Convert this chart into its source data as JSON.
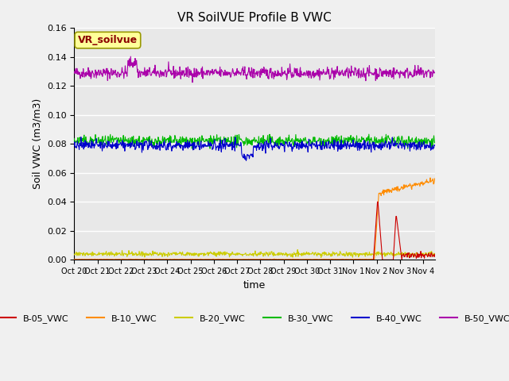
{
  "title": "VR SoilVUE Profile B VWC",
  "xlabel": "time",
  "ylabel": "Soil VWC (m3/m3)",
  "ylim": [
    0,
    0.16
  ],
  "yticks": [
    0.0,
    0.02,
    0.04,
    0.06,
    0.08,
    0.1,
    0.12,
    0.14,
    0.16
  ],
  "series": {
    "B-05_VWC": {
      "color": "#cc0000",
      "lw": 0.8
    },
    "B-10_VWC": {
      "color": "#ff8c00",
      "lw": 0.8
    },
    "B-20_VWC": {
      "color": "#cccc00",
      "lw": 0.8
    },
    "B-30_VWC": {
      "color": "#00bb00",
      "lw": 0.8
    },
    "B-40_VWC": {
      "color": "#0000cc",
      "lw": 0.8
    },
    "B-50_VWC": {
      "color": "#aa00aa",
      "lw": 0.8
    }
  },
  "legend_label": "VR_soilvue",
  "legend_box_color": "#ffff99",
  "legend_text_color": "#8b0000",
  "background_color": "#e8e8e8",
  "grid_color": "#ffffff",
  "xtick_labels": [
    "Oct 20",
    "Oct 21",
    "Oct 22",
    "Oct 23",
    "Oct 24",
    "Oct 25",
    "Oct 26",
    "Oct 27",
    "Oct 28",
    "Oct 29",
    "Oct 30",
    "Oct 31",
    "Nov 1",
    "Nov 2",
    "Nov 3",
    "Nov 4"
  ],
  "figwidth": 6.4,
  "figheight": 4.8,
  "dpi": 100
}
